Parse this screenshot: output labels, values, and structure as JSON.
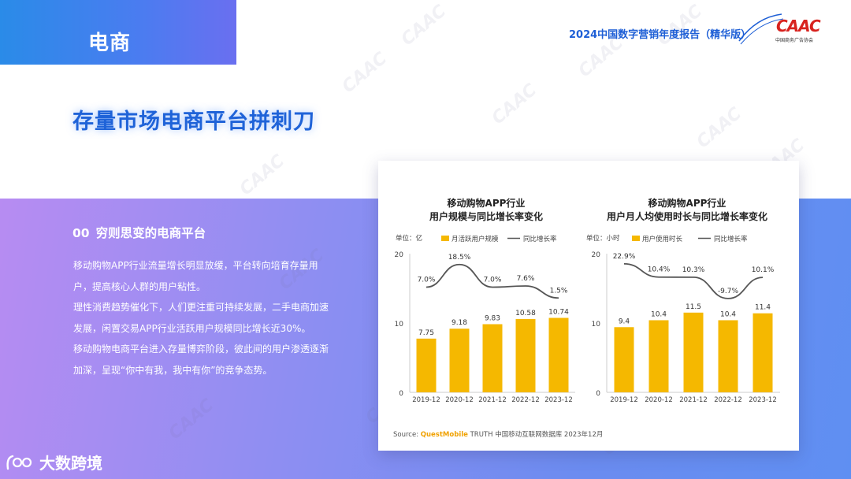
{
  "section_tab": {
    "label": "电商"
  },
  "header": {
    "report_title": "2024中国数字营销年度报告（精华版）",
    "logo_text": "CAAC",
    "logo_sub": "中国商务广告协会",
    "watermark": "CAAC"
  },
  "main_heading": "存量市场电商平台拼刺刀",
  "content": {
    "sub_heading_num": "00",
    "sub_heading": "穷则思变的电商平台",
    "paragraphs": [
      "移动购物APP行业流量增长明显放缓，平台转向培育存量用户，提高核心人群的用户粘性。",
      "理性消费趋势催化下，人们更注重可持续发展，二手电商加速发展，闲置交易APP行业活跃用户规模同比增长近30%。",
      "移动购物电商平台进入存量博弈阶段，彼此间的用户渗透逐渐加深，呈现“你中有我，我中有你”的竞争态势。"
    ]
  },
  "source": {
    "prefix": "Source:",
    "brand": "QuestMobile",
    "rest": "TRUTH 中国移动互联网数据库 2023年12月"
  },
  "brand": {
    "name": "大数跨境"
  },
  "colors": {
    "bar": "#f5b800",
    "line": "#555555",
    "accent": "#1f63d8"
  },
  "chart_data": [
    {
      "type": "bar",
      "title_line1": "移动购物APP行业",
      "title_line2": "用户规模与同比增长率变化",
      "unit": "单位：亿",
      "categories": [
        "2019-12",
        "2020-12",
        "2021-12",
        "2022-12",
        "2023-12"
      ],
      "series": [
        {
          "name": "月活跃用户规模",
          "type": "bar",
          "values": [
            7.75,
            9.18,
            9.83,
            10.58,
            10.74
          ],
          "labels": [
            "7.75",
            "9.18",
            "9.83",
            "10.58",
            "10.74"
          ]
        },
        {
          "name": "同比增长率",
          "type": "line",
          "values": [
            7.0,
            18.5,
            7.0,
            7.6,
            1.5
          ],
          "labels": [
            "7.0%",
            "18.5%",
            "7.0%",
            "7.6%",
            "1.5%"
          ]
        }
      ],
      "yticks": [
        "0",
        "10",
        "20"
      ],
      "ylim": [
        0,
        20
      ]
    },
    {
      "type": "bar",
      "title_line1": "移动购物APP行业",
      "title_line2": "用户月人均使用时长与同比增长率变化",
      "unit": "单位：小时",
      "categories": [
        "2019-12",
        "2020-12",
        "2021-12",
        "2022-12",
        "2023-12"
      ],
      "series": [
        {
          "name": "用户使用时长",
          "type": "bar",
          "values": [
            9.4,
            10.4,
            11.5,
            10.4,
            11.4
          ],
          "labels": [
            "9.4",
            "10.4",
            "11.5",
            "10.4",
            "11.4"
          ]
        },
        {
          "name": "同比增长率",
          "type": "line",
          "values": [
            22.9,
            10.4,
            10.3,
            -9.7,
            10.1
          ],
          "labels": [
            "22.9%",
            "10.4%",
            "10.3%",
            "-9.7%",
            "10.1%"
          ]
        }
      ],
      "yticks": [
        "0",
        "10",
        "20"
      ],
      "ylim": [
        0,
        20
      ]
    }
  ]
}
